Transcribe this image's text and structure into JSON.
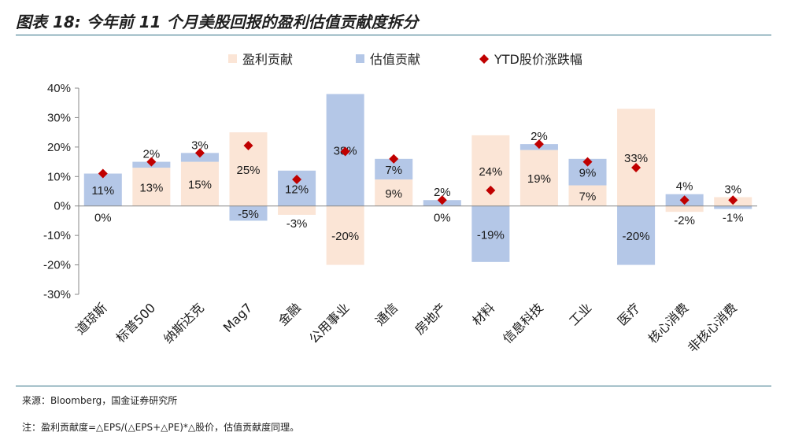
{
  "title": "图表 18: 今年前 11 个月美股回报的盈利估值贡献度拆分",
  "source": "来源：Bloomberg，国金证券研究所",
  "note": "注：盈利贡献度=△EPS/(△EPS+△PE)*△股价，估值贡献度同理。",
  "colors": {
    "earnings": "#fbe5d6",
    "valuation": "#b4c7e7",
    "ytd": "#c00000",
    "axis": "#888888"
  },
  "chart_data": {
    "type": "bar",
    "stacked": true,
    "categories": [
      "道琼斯",
      "标普500",
      "纳斯达克",
      "Mag7",
      "金融",
      "公用事业",
      "通信",
      "房地产",
      "材料",
      "信息科技",
      "工业",
      "医疗",
      "核心消费",
      "非核心消费"
    ],
    "series": [
      {
        "name": "盈利贡献",
        "type": "bar",
        "values": [
          0,
          13,
          15,
          25,
          -3,
          -20,
          9,
          0,
          24,
          19,
          7,
          33,
          -2,
          3
        ],
        "labels": [
          "0%",
          "13%",
          "15%",
          "25%",
          "-3%",
          "-20%",
          "9%",
          "0%",
          "24%",
          "19%",
          "7%",
          "33%",
          "-2%",
          "3%"
        ]
      },
      {
        "name": "估值贡献",
        "type": "bar",
        "values": [
          11,
          2,
          3,
          -5,
          12,
          38,
          7,
          2,
          -19,
          2,
          9,
          -20,
          4,
          -1
        ],
        "labels": [
          "11%",
          "2%",
          "3%",
          "-5%",
          "12%",
          "38%",
          "7%",
          "2%",
          "-19%",
          "2%",
          "9%",
          "-20%",
          "4%",
          "-1%"
        ]
      },
      {
        "name": "YTD股价涨跌幅",
        "type": "scatter",
        "values": [
          11,
          15,
          18,
          20.5,
          9,
          18.5,
          16,
          2,
          5.3,
          21,
          15,
          13,
          2,
          2
        ]
      }
    ],
    "ylim": [
      -30,
      40
    ],
    "yticks": [
      40,
      30,
      20,
      10,
      0,
      -10,
      -20,
      -30
    ],
    "ytick_labels": [
      "40%",
      "30%",
      "20%",
      "10%",
      "0%",
      "-10%",
      "-20%",
      "-30%"
    ],
    "legend": [
      "盈利贡献",
      "估值贡献",
      "YTD股价涨跌幅"
    ],
    "legend_position": "top"
  }
}
